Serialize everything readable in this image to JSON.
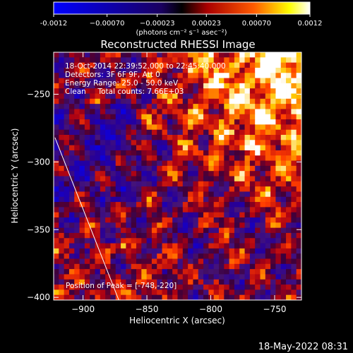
{
  "chart_data": {
    "type": "heatmap",
    "title": "Reconstructed RHESSI Image",
    "xlabel": "Heliocentric X (arcsec)",
    "ylabel": "Heliocentric Y (arcsec)",
    "xlim": [
      -923,
      -729
    ],
    "ylim": [
      -402,
      -219
    ],
    "xticks": [
      -900,
      -850,
      -800,
      -750
    ],
    "yticks": [
      -250,
      -300,
      -350,
      -400
    ],
    "colorbar": {
      "min": -0.0012,
      "max": 0.0012,
      "ticks": [
        -0.0012,
        -0.0007,
        -0.00023,
        0.00023,
        0.0007,
        0.0012
      ],
      "tick_labels": [
        "-0.0012",
        "−0.00070",
        "−0.00023",
        "0.00023",
        "0.00070",
        "0.0012"
      ],
      "unit_label": "(photons cm⁻² s⁻¹ asec⁻²)"
    },
    "annotations": [
      "18-Oct-2014 22:39:52.000 to 22:45:40.000",
      "Detectors: 3F 6F 9F, Att 0",
      "Energy Range: 25.0 - 50.0 keV",
      "Clean     Total counts: 7.66E+03"
    ],
    "peak_label": "Position of Peak = [-748,-220]",
    "peak": [
      -748,
      -220
    ],
    "limb_line": [
      [
        -922,
        -282
      ],
      [
        -872,
        -402
      ]
    ],
    "colormap": [
      "#0000ff",
      "#000000",
      "#ff0000",
      "#ffff00",
      "#ffffff"
    ]
  },
  "footer": {
    "timestamp": "18-May-2022 08:31"
  }
}
